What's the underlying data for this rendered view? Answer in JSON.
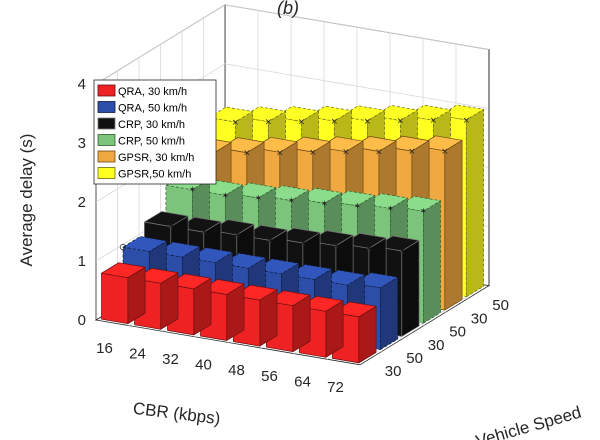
{
  "chart_data": {
    "type": "bar3d",
    "title": "(b)",
    "xlabel": "CBR (kbps)",
    "ylabel": "Vehicle Speed",
    "zlabel": "Average delay (s)",
    "zlim": [
      0,
      4
    ],
    "zticks": [
      "0",
      "1",
      "2",
      "3",
      "4"
    ],
    "categories": [
      "16",
      "24",
      "32",
      "40",
      "48",
      "56",
      "64",
      "72"
    ],
    "depth_ticks": [
      "30",
      "50",
      "30",
      "50",
      "30",
      "50"
    ],
    "grid": true,
    "legend_position": "top-left",
    "series": [
      {
        "name": "QRA, 30 km/h",
        "color": "#ee2222",
        "edge": "#6b1010",
        "values": [
          0.78,
          0.78,
          0.78,
          0.78,
          0.78,
          0.78,
          0.78,
          0.78
        ]
      },
      {
        "name": "QRA, 50 km/h",
        "color": "#2c4ea8",
        "edge": "#101c40",
        "values": [
          1.0,
          1.0,
          1.0,
          1.0,
          1.0,
          1.0,
          1.0,
          1.05
        ]
      },
      {
        "name": "CRP, 30 km/h",
        "color": "#111111",
        "edge": "#777777",
        "values": [
          1.2,
          1.2,
          1.25,
          1.25,
          1.3,
          1.35,
          1.4,
          1.45
        ]
      },
      {
        "name": "CRP, 50 km/h",
        "color": "#7cc47c",
        "edge": "#2f5f2f",
        "values": [
          1.6,
          1.6,
          1.65,
          1.7,
          1.75,
          1.8,
          1.85,
          1.9
        ]
      },
      {
        "name": "GPSR, 30 km/h",
        "color": "#f0a840",
        "edge": "#6b4a12",
        "values": [
          2.0,
          2.1,
          2.2,
          2.3,
          2.4,
          2.5,
          2.6,
          2.7
        ]
      },
      {
        "name": "GPSR,50 km/h",
        "color": "#ffff22",
        "edge": "#6b6b12",
        "values": [
          2.3,
          2.4,
          2.5,
          2.6,
          2.7,
          2.8,
          2.9,
          3.0
        ]
      }
    ]
  }
}
